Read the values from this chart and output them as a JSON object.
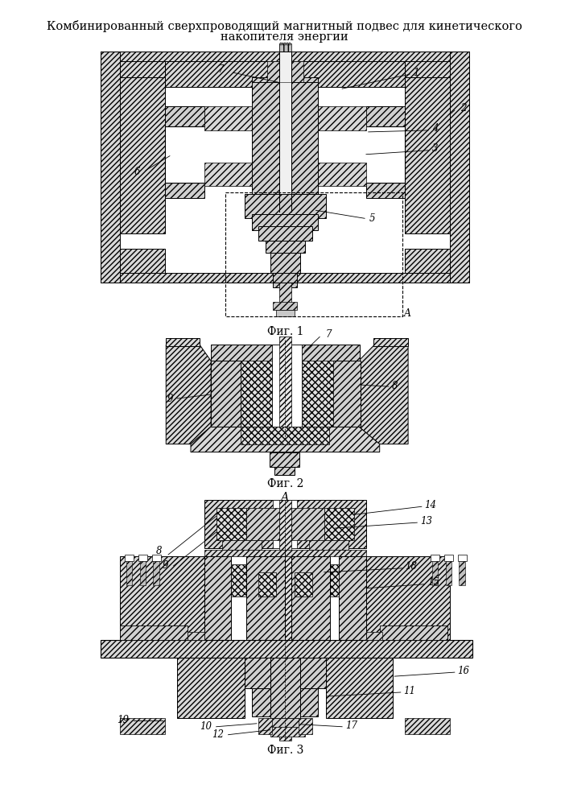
{
  "title_line1": "Комбинированный сверхпроводящий магнитный подвес для кинетического",
  "title_line2": "накопителя энергии",
  "fig1_caption": "Фиг. 1",
  "fig2_caption": "Фиг. 2",
  "fig3_caption": "Фиг. 3",
  "background_color": "#ffffff",
  "line_color": "#000000",
  "title_fontsize": 10.5,
  "caption_fontsize": 10,
  "label_fontsize": 8.5
}
